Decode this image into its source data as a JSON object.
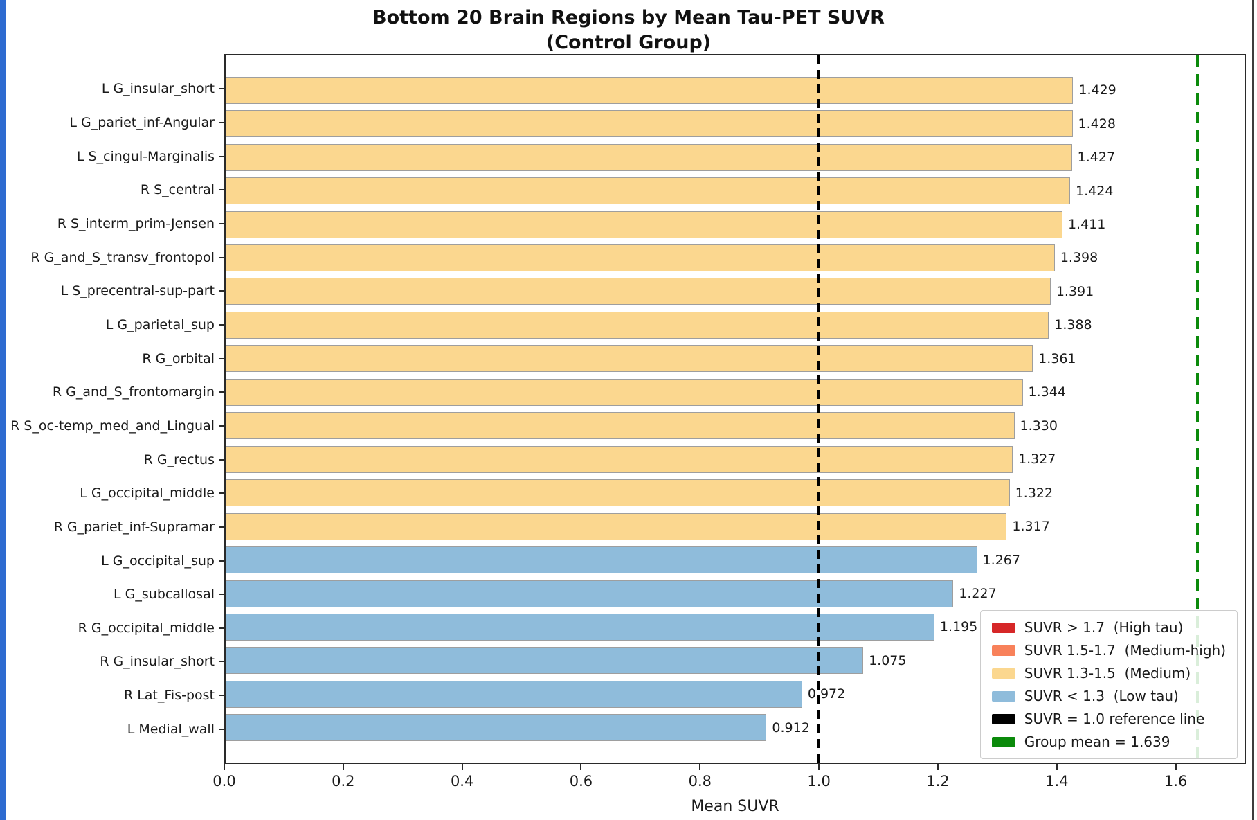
{
  "window": {
    "left_edge_color": "#2e6bd0"
  },
  "chart_data": {
    "type": "bar",
    "orientation": "horizontal",
    "title": "Bottom 20 Brain Regions by Mean Tau-PET SUVR",
    "subtitle": "(Control Group)",
    "xlabel": "Mean SUVR",
    "xlim": [
      0,
      1.718
    ],
    "grid": false,
    "xticks": [
      {
        "value": 0.0,
        "label": "0.0"
      },
      {
        "value": 0.2,
        "label": "0.2"
      },
      {
        "value": 0.4,
        "label": "0.4"
      },
      {
        "value": 0.6,
        "label": "0.6"
      },
      {
        "value": 0.8,
        "label": "0.8"
      },
      {
        "value": 1.0,
        "label": "1.0"
      },
      {
        "value": 1.2,
        "label": "1.2"
      },
      {
        "value": 1.4,
        "label": "1.4"
      },
      {
        "value": 1.6,
        "label": "1.6"
      }
    ],
    "bars": [
      {
        "label": "L G_insular_short",
        "value": 1.429,
        "value_label": "1.429",
        "level": "medium"
      },
      {
        "label": "L G_pariet_inf-Angular",
        "value": 1.428,
        "value_label": "1.428",
        "level": "medium"
      },
      {
        "label": "L S_cingul-Marginalis",
        "value": 1.427,
        "value_label": "1.427",
        "level": "medium"
      },
      {
        "label": "R S_central",
        "value": 1.424,
        "value_label": "1.424",
        "level": "medium"
      },
      {
        "label": "R S_interm_prim-Jensen",
        "value": 1.411,
        "value_label": "1.411",
        "level": "medium"
      },
      {
        "label": "R G_and_S_transv_frontopol",
        "value": 1.398,
        "value_label": "1.398",
        "level": "medium"
      },
      {
        "label": "L S_precentral-sup-part",
        "value": 1.391,
        "value_label": "1.391",
        "level": "medium"
      },
      {
        "label": "L G_parietal_sup",
        "value": 1.388,
        "value_label": "1.388",
        "level": "medium"
      },
      {
        "label": "R G_orbital",
        "value": 1.361,
        "value_label": "1.361",
        "level": "medium"
      },
      {
        "label": "R G_and_S_frontomargin",
        "value": 1.344,
        "value_label": "1.344",
        "level": "medium"
      },
      {
        "label": "R S_oc-temp_med_and_Lingual",
        "value": 1.33,
        "value_label": "1.330",
        "level": "medium"
      },
      {
        "label": "R G_rectus",
        "value": 1.327,
        "value_label": "1.327",
        "level": "medium"
      },
      {
        "label": "L G_occipital_middle",
        "value": 1.322,
        "value_label": "1.322",
        "level": "medium"
      },
      {
        "label": "R G_pariet_inf-Supramar",
        "value": 1.317,
        "value_label": "1.317",
        "level": "medium"
      },
      {
        "label": "L G_occipital_sup",
        "value": 1.267,
        "value_label": "1.267",
        "level": "low"
      },
      {
        "label": "L G_subcallosal",
        "value": 1.227,
        "value_label": "1.227",
        "level": "low"
      },
      {
        "label": "R G_occipital_middle",
        "value": 1.195,
        "value_label": "1.195",
        "level": "low"
      },
      {
        "label": "R G_insular_short",
        "value": 1.075,
        "value_label": "1.075",
        "level": "low"
      },
      {
        "label": "R Lat_Fis-post",
        "value": 0.972,
        "value_label": "0.972",
        "level": "low"
      },
      {
        "label": "L Medial_wall",
        "value": 0.912,
        "value_label": "0.912",
        "level": "low"
      }
    ],
    "colors": {
      "high": "#d62728",
      "medium_high": "#f8815a",
      "medium": "#fbd78f",
      "low": "#8fbcdb",
      "reference_line": "#000000",
      "group_mean_line": "#0b8a0b",
      "bar_edge": "#9e9e9e"
    },
    "reference_lines": [
      {
        "name": "suvr-1.0-reference",
        "value": 1.0,
        "style": "dashed",
        "color": "#000000"
      },
      {
        "name": "group-mean",
        "value": 1.639,
        "style": "dashed",
        "color": "#0b8a0b"
      }
    ],
    "legend": {
      "position": "lower right",
      "items": [
        {
          "label": "SUVR > 1.7  (High tau)",
          "color": "#d62728"
        },
        {
          "label": "SUVR 1.5-1.7  (Medium-high)",
          "color": "#f8815a"
        },
        {
          "label": "SUVR 1.3-1.5  (Medium)",
          "color": "#fbd78f"
        },
        {
          "label": "SUVR < 1.3  (Low tau)",
          "color": "#8fbcdb"
        },
        {
          "label": "SUVR = 1.0 reference line",
          "color": "#000000"
        },
        {
          "label": "Group mean = 1.639",
          "color": "#0b8a0b"
        }
      ]
    }
  }
}
